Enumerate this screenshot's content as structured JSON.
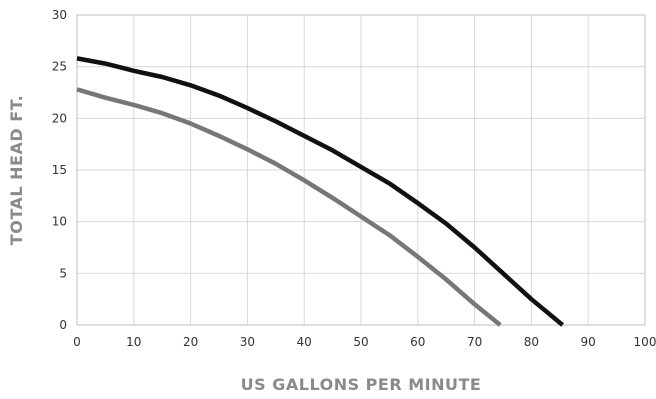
{
  "chart_data": {
    "type": "line",
    "xlabel": "US GALLONS PER MINUTE",
    "ylabel": "TOTAL HEAD FT.",
    "xlim": [
      0,
      100
    ],
    "ylim": [
      0,
      30
    ],
    "x_ticks": [
      0,
      10,
      20,
      30,
      40,
      50,
      60,
      70,
      80,
      90,
      100
    ],
    "y_ticks": [
      0,
      5,
      10,
      15,
      20,
      25,
      30
    ],
    "grid": true,
    "series": [
      {
        "color": "#111111",
        "x": [
          0,
          5,
          10,
          15,
          20,
          25,
          30,
          35,
          40,
          45,
          50,
          55,
          60,
          65,
          70,
          75,
          80,
          85.5
        ],
        "y": [
          25.8,
          25.3,
          24.6,
          24.0,
          23.2,
          22.2,
          21.0,
          19.7,
          18.3,
          16.9,
          15.3,
          13.7,
          11.8,
          9.8,
          7.5,
          5.0,
          2.5,
          0
        ]
      },
      {
        "color": "#777777",
        "x": [
          0,
          5,
          10,
          15,
          20,
          25,
          30,
          35,
          40,
          45,
          50,
          55,
          60,
          65,
          70,
          74.5
        ],
        "y": [
          22.8,
          22.0,
          21.3,
          20.5,
          19.5,
          18.3,
          17.0,
          15.6,
          14.0,
          12.3,
          10.5,
          8.7,
          6.6,
          4.4,
          2.0,
          0
        ]
      }
    ]
  }
}
